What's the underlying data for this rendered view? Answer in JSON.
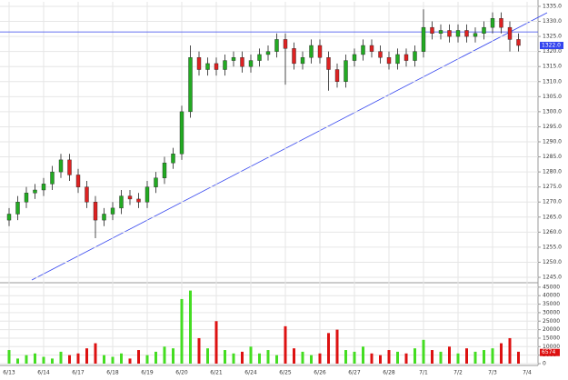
{
  "chart_data": {
    "type": "candlestick",
    "categories": [
      "6/13",
      null,
      null,
      null,
      "6/14",
      null,
      null,
      null,
      "6/17",
      null,
      null,
      null,
      "6/18",
      null,
      null,
      null,
      "6/19",
      null,
      null,
      null,
      "6/20",
      null,
      null,
      null,
      "6/21",
      null,
      null,
      null,
      "6/24",
      null,
      null,
      null,
      "6/25",
      null,
      null,
      null,
      "6/26",
      null,
      null,
      null,
      "6/27",
      null,
      null,
      null,
      "6/28",
      null,
      null,
      null,
      "7/1",
      null,
      null,
      null,
      "7/2",
      null,
      null,
      null,
      "7/3",
      null,
      null,
      null,
      "7/4"
    ],
    "open": [
      1264,
      1266,
      1270,
      1273,
      1274,
      1276,
      1280,
      1284,
      1279,
      1275,
      1270,
      1264,
      1266,
      1268,
      1272,
      1271,
      1270,
      1275,
      1278,
      1283,
      1286,
      1300,
      1318,
      1314,
      1316,
      1314,
      1317,
      1318,
      1315,
      1317,
      1319,
      1320,
      1324,
      1321,
      1316,
      1318,
      1322,
      1318,
      1314,
      1310,
      1317,
      1319,
      1322,
      1320,
      1318,
      1316,
      1319,
      1317,
      1320,
      1328,
      1326,
      1327,
      1325,
      1327,
      1325,
      1326,
      1328,
      1331,
      1328,
      1324,
      null
    ],
    "high": [
      1268,
      1272,
      1275,
      1276,
      1278,
      1282,
      1286,
      1286,
      1281,
      1277,
      1272,
      1268,
      1270,
      1274,
      1274,
      1273,
      1277,
      1280,
      1285,
      1288,
      1302,
      1322,
      1320,
      1318,
      1318,
      1319,
      1320,
      1320,
      1319,
      1321,
      1322,
      1326,
      1326,
      1323,
      1320,
      1324,
      1324,
      1320,
      1316,
      1319,
      1321,
      1324,
      1324,
      1322,
      1320,
      1321,
      1321,
      1322,
      1334,
      1330,
      1329,
      1329,
      1329,
      1329,
      1328,
      1330,
      1333,
      1333,
      1330,
      1326,
      null
    ],
    "low": [
      1262,
      1264,
      1268,
      1271,
      1272,
      1274,
      1278,
      1277,
      1273,
      1268,
      1258,
      1262,
      1264,
      1266,
      1269,
      1268,
      1268,
      1273,
      1276,
      1281,
      1284,
      1298,
      1312,
      1312,
      1312,
      1312,
      1315,
      1313,
      1313,
      1315,
      1317,
      1318,
      1309,
      1314,
      1314,
      1316,
      1316,
      1307,
      1308,
      1308,
      1315,
      1317,
      1318,
      1316,
      1314,
      1314,
      1315,
      1315,
      1318,
      1324,
      1324,
      1323,
      1323,
      1323,
      1323,
      1324,
      1326,
      1326,
      1320,
      1320,
      null
    ],
    "close": [
      1266,
      1270,
      1273,
      1274,
      1276,
      1280,
      1284,
      1279,
      1275,
      1270,
      1264,
      1266,
      1268,
      1272,
      1271,
      1270,
      1275,
      1278,
      1283,
      1286,
      1300,
      1318,
      1314,
      1316,
      1314,
      1317,
      1318,
      1315,
      1317,
      1319,
      1320,
      1324,
      1321,
      1316,
      1318,
      1322,
      1318,
      1314,
      1310,
      1317,
      1319,
      1322,
      1320,
      1318,
      1316,
      1319,
      1317,
      1320,
      1328,
      1326,
      1327,
      1325,
      1327,
      1325,
      1326,
      1328,
      1331,
      1328,
      1324,
      1322,
      null
    ],
    "volume": [
      8000,
      3000,
      5000,
      6000,
      4000,
      3000,
      7000,
      5000,
      6000,
      9000,
      12000,
      5000,
      4000,
      6000,
      3000,
      8000,
      5000,
      7000,
      10000,
      9000,
      38000,
      43000,
      15000,
      9000,
      25000,
      8000,
      6000,
      7000,
      10000,
      6000,
      8000,
      5000,
      22000,
      9000,
      7000,
      5000,
      6000,
      18000,
      20000,
      8000,
      7000,
      10000,
      6000,
      5000,
      8000,
      7000,
      6000,
      9000,
      14000,
      8000,
      7000,
      10000,
      6000,
      9000,
      7000,
      8000,
      9000,
      12000,
      15000,
      7000,
      null
    ],
    "up_color": "#22aa22",
    "down_color": "#dd2222",
    "volume_up_color": "#44dd22",
    "volume_down_color": "#dd1111",
    "ylim": [
      1243.5,
      1336.5
    ],
    "yticks": [
      {
        "value": 1245,
        "label": "1245.0"
      },
      {
        "value": 1250,
        "label": "1250.0"
      },
      {
        "value": 1255,
        "label": "1255.0"
      },
      {
        "value": 1260,
        "label": "1260.0"
      },
      {
        "value": 1265,
        "label": "1265.0"
      },
      {
        "value": 1270,
        "label": "1270.0"
      },
      {
        "value": 1275,
        "label": "1275.0"
      },
      {
        "value": 1280,
        "label": "1280.0"
      },
      {
        "value": 1285,
        "label": "1285.0"
      },
      {
        "value": 1290,
        "label": "1290.0"
      },
      {
        "value": 1295,
        "label": "1295.0"
      },
      {
        "value": 1300,
        "label": "1300.0"
      },
      {
        "value": 1305,
        "label": "1305.0"
      },
      {
        "value": 1310,
        "label": "1310.0"
      },
      {
        "value": 1315,
        "label": "1315.0"
      },
      {
        "value": 1320,
        "label": "1320.0"
      },
      {
        "value": 1325,
        "label": "1325.0"
      },
      {
        "value": 1330,
        "label": "1330.0"
      },
      {
        "value": 1335,
        "label": "1335.0"
      }
    ],
    "y2lim": [
      0,
      46000
    ],
    "y2ticks": [
      0,
      5000,
      10000,
      15000,
      20000,
      25000,
      30000,
      35000,
      40000,
      45000
    ],
    "hline": 1326.5,
    "hline_color": "#3344ee",
    "last_price_label": {
      "value": 1322,
      "label": "1322.0"
    },
    "last_volume_label": {
      "value": 6574,
      "label": "6574"
    },
    "grid": true
  }
}
